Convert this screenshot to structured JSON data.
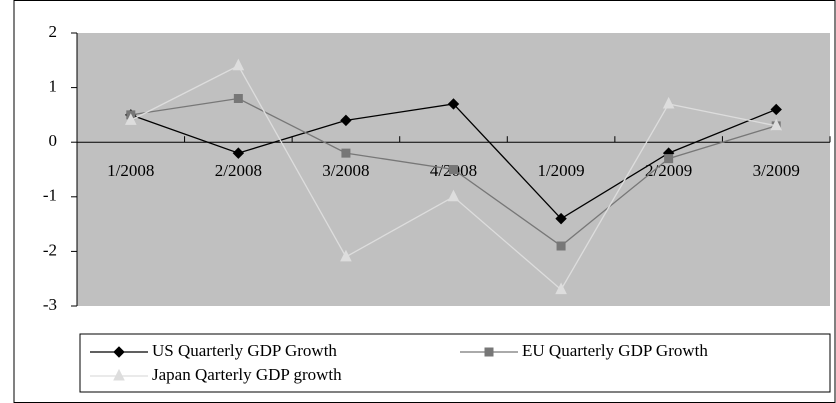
{
  "chart_data": {
    "type": "line",
    "categories": [
      "1/2008",
      "2/2008",
      "3/2008",
      "4/2008",
      "1/2009",
      "2/2009",
      "3/2009"
    ],
    "series": [
      {
        "name": "US Quarterly GDP Growth",
        "color": "#000000",
        "marker": "diamond",
        "values": [
          0.5,
          -0.2,
          0.4,
          0.7,
          -1.4,
          -0.2,
          0.6
        ]
      },
      {
        "name": "EU Quarterly GDP Growth",
        "color": "#777777",
        "marker": "square",
        "values": [
          0.5,
          0.8,
          -0.2,
          -0.5,
          -1.9,
          -0.3,
          0.3
        ]
      },
      {
        "name": "Japan Qarterly GDP growth",
        "color": "#dddddd",
        "marker": "triangle",
        "values": [
          0.4,
          1.4,
          -2.1,
          -1.0,
          -2.7,
          0.7,
          0.3
        ]
      }
    ],
    "ylim": [
      -3,
      2
    ],
    "yticks": [
      -3,
      -2,
      -1,
      0,
      1,
      2
    ],
    "plot_background": "#c0c0c0",
    "legend": "bottom"
  }
}
